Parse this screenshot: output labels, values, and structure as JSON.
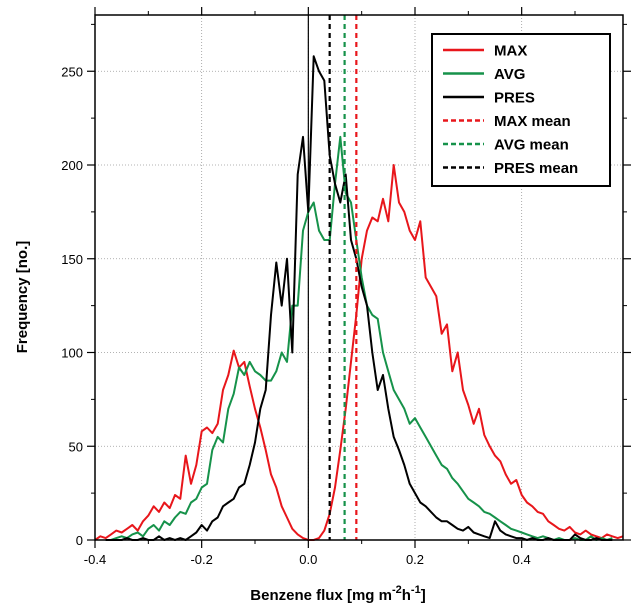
{
  "chart_data": {
    "type": "line",
    "xlabel": "Benzene flux [mg m",
    "xlabel_sup1": "-2",
    "xlabel_mid": "h",
    "xlabel_sup2": "-1",
    "xlabel_end": "]",
    "ylabel": "Frequency [no.]",
    "xlim": [
      -0.4,
      0.59
    ],
    "ylim": [
      0,
      280
    ],
    "x_ticks": [
      -0.4,
      -0.2,
      0.0,
      0.2,
      0.4
    ],
    "x_tick_labels": [
      "-0.4",
      "-0.2",
      "0.0",
      "0.2",
      "0.4"
    ],
    "y_ticks": [
      0,
      50,
      100,
      150,
      200,
      250
    ],
    "y_tick_labels": [
      "0",
      "50",
      "100",
      "150",
      "200",
      "250"
    ],
    "grid": true,
    "legend_position": "top-right",
    "zero_line_x": 0.0,
    "series": [
      {
        "name": "MAX",
        "color": "#e8161b",
        "x": [
          -0.4,
          -0.39,
          -0.38,
          -0.37,
          -0.36,
          -0.35,
          -0.34,
          -0.33,
          -0.32,
          -0.31,
          -0.3,
          -0.29,
          -0.28,
          -0.27,
          -0.26,
          -0.25,
          -0.24,
          -0.23,
          -0.22,
          -0.21,
          -0.2,
          -0.19,
          -0.18,
          -0.17,
          -0.16,
          -0.15,
          -0.14,
          -0.13,
          -0.12,
          -0.11,
          -0.1,
          -0.09,
          -0.08,
          -0.07,
          -0.06,
          -0.05,
          -0.04,
          -0.03,
          -0.02,
          -0.01,
          0.0,
          0.01,
          0.02,
          0.03,
          0.04,
          0.05,
          0.06,
          0.07,
          0.08,
          0.09,
          0.1,
          0.11,
          0.12,
          0.13,
          0.14,
          0.15,
          0.16,
          0.17,
          0.18,
          0.19,
          0.2,
          0.21,
          0.22,
          0.23,
          0.24,
          0.25,
          0.26,
          0.27,
          0.28,
          0.29,
          0.3,
          0.31,
          0.32,
          0.33,
          0.34,
          0.35,
          0.36,
          0.37,
          0.38,
          0.39,
          0.4,
          0.41,
          0.42,
          0.43,
          0.44,
          0.45,
          0.46,
          0.47,
          0.48,
          0.49,
          0.5,
          0.51,
          0.52,
          0.53,
          0.54,
          0.55,
          0.56,
          0.57,
          0.58,
          0.59
        ],
        "values": [
          0,
          2,
          1,
          3,
          5,
          4,
          6,
          8,
          5,
          10,
          13,
          18,
          15,
          20,
          17,
          24,
          22,
          45,
          30,
          40,
          58,
          60,
          57,
          62,
          80,
          88,
          101,
          92,
          95,
          82,
          70,
          60,
          48,
          35,
          28,
          18,
          12,
          6,
          3,
          1,
          0,
          0,
          1,
          5,
          14,
          28,
          48,
          70,
          95,
          120,
          150,
          165,
          172,
          170,
          182,
          170,
          200,
          180,
          175,
          165,
          160,
          170,
          140,
          135,
          130,
          110,
          115,
          90,
          100,
          80,
          72,
          62,
          70,
          56,
          50,
          45,
          42,
          35,
          30,
          32,
          24,
          20,
          18,
          15,
          14,
          10,
          8,
          6,
          5,
          7,
          4,
          3,
          5,
          3,
          2,
          1,
          3,
          2,
          1,
          2
        ]
      },
      {
        "name": "AVG",
        "color": "#16924a",
        "x": [
          -0.38,
          -0.37,
          -0.36,
          -0.35,
          -0.34,
          -0.33,
          -0.32,
          -0.31,
          -0.3,
          -0.29,
          -0.28,
          -0.27,
          -0.26,
          -0.25,
          -0.24,
          -0.23,
          -0.22,
          -0.21,
          -0.2,
          -0.19,
          -0.18,
          -0.17,
          -0.16,
          -0.15,
          -0.14,
          -0.13,
          -0.12,
          -0.11,
          -0.1,
          -0.09,
          -0.08,
          -0.07,
          -0.06,
          -0.05,
          -0.04,
          -0.03,
          -0.02,
          -0.01,
          0.0,
          0.01,
          0.02,
          0.03,
          0.04,
          0.05,
          0.06,
          0.07,
          0.08,
          0.09,
          0.1,
          0.11,
          0.12,
          0.13,
          0.14,
          0.15,
          0.16,
          0.17,
          0.18,
          0.19,
          0.2,
          0.21,
          0.22,
          0.23,
          0.24,
          0.25,
          0.26,
          0.27,
          0.28,
          0.29,
          0.3,
          0.31,
          0.32,
          0.33,
          0.34,
          0.35,
          0.36,
          0.37,
          0.38,
          0.39,
          0.4,
          0.41,
          0.42,
          0.43,
          0.44,
          0.45,
          0.46,
          0.47,
          0.48,
          0.49,
          0.5,
          0.51,
          0.52,
          0.53,
          0.54,
          0.55,
          0.56,
          0.57
        ],
        "values": [
          0,
          0,
          1,
          2,
          1,
          3,
          4,
          2,
          6,
          8,
          5,
          10,
          8,
          12,
          15,
          14,
          20,
          22,
          28,
          30,
          48,
          55,
          52,
          70,
          78,
          92,
          88,
          95,
          90,
          88,
          85,
          85,
          90,
          100,
          95,
          125,
          125,
          165,
          175,
          180,
          165,
          160,
          160,
          190,
          215,
          185,
          180,
          160,
          140,
          125,
          120,
          118,
          100,
          90,
          80,
          75,
          70,
          62,
          65,
          60,
          55,
          50,
          45,
          40,
          38,
          33,
          30,
          26,
          22,
          20,
          18,
          15,
          14,
          12,
          10,
          8,
          6,
          5,
          4,
          3,
          2,
          1,
          2,
          1,
          0,
          1,
          0,
          0,
          1,
          0,
          0,
          2,
          0,
          1,
          0,
          1
        ]
      },
      {
        "name": "PRES",
        "color": "#000000",
        "x": [
          -0.38,
          -0.37,
          -0.36,
          -0.35,
          -0.34,
          -0.33,
          -0.32,
          -0.31,
          -0.3,
          -0.29,
          -0.28,
          -0.27,
          -0.26,
          -0.25,
          -0.24,
          -0.23,
          -0.22,
          -0.21,
          -0.2,
          -0.19,
          -0.18,
          -0.17,
          -0.16,
          -0.15,
          -0.14,
          -0.13,
          -0.12,
          -0.11,
          -0.1,
          -0.09,
          -0.08,
          -0.07,
          -0.06,
          -0.05,
          -0.04,
          -0.03,
          -0.02,
          -0.01,
          0.0,
          0.01,
          0.02,
          0.03,
          0.04,
          0.05,
          0.06,
          0.07,
          0.08,
          0.09,
          0.1,
          0.11,
          0.12,
          0.13,
          0.14,
          0.15,
          0.16,
          0.17,
          0.18,
          0.19,
          0.2,
          0.21,
          0.22,
          0.23,
          0.24,
          0.25,
          0.26,
          0.27,
          0.28,
          0.29,
          0.3,
          0.31,
          0.32,
          0.33,
          0.34,
          0.35,
          0.36,
          0.37,
          0.38,
          0.39,
          0.4,
          0.41,
          0.42,
          0.43,
          0.44,
          0.45,
          0.46,
          0.47,
          0.48,
          0.49,
          0.5,
          0.51,
          0.52,
          0.53,
          0.54,
          0.55,
          0.56,
          0.57
        ],
        "values": [
          0,
          0,
          0,
          0,
          1,
          0,
          0,
          1,
          0,
          0,
          2,
          0,
          1,
          0,
          1,
          0,
          2,
          4,
          8,
          5,
          10,
          12,
          18,
          20,
          22,
          28,
          30,
          40,
          52,
          70,
          80,
          120,
          148,
          125,
          150,
          100,
          195,
          215,
          175,
          258,
          250,
          245,
          205,
          190,
          180,
          195,
          160,
          150,
          135,
          125,
          100,
          80,
          88,
          70,
          55,
          48,
          40,
          30,
          25,
          20,
          18,
          15,
          12,
          10,
          10,
          8,
          6,
          5,
          7,
          4,
          3,
          2,
          1,
          10,
          5,
          3,
          2,
          1,
          1,
          0,
          1,
          0,
          0,
          1,
          0,
          0,
          0,
          0,
          3,
          1,
          0,
          0,
          1,
          0,
          0,
          0
        ]
      }
    ],
    "means": [
      {
        "name": "MAX mean",
        "color": "#e8161b",
        "x": 0.09
      },
      {
        "name": "AVG mean",
        "color": "#16924a",
        "x": 0.068
      },
      {
        "name": "PRES mean",
        "color": "#000000",
        "x": 0.04
      }
    ],
    "legend": [
      {
        "label": "MAX",
        "color": "#e8161b",
        "dashed": false
      },
      {
        "label": "AVG",
        "color": "#16924a",
        "dashed": false
      },
      {
        "label": "PRES",
        "color": "#000000",
        "dashed": false
      },
      {
        "label": "MAX mean",
        "color": "#e8161b",
        "dashed": true
      },
      {
        "label": "AVG mean",
        "color": "#16924a",
        "dashed": true
      },
      {
        "label": "PRES mean",
        "color": "#000000",
        "dashed": true
      }
    ]
  }
}
